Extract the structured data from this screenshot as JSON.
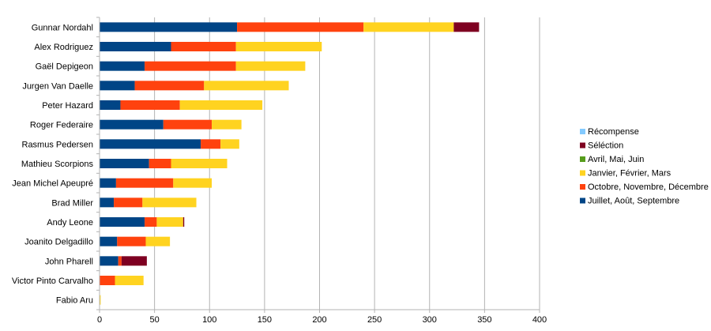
{
  "chart_data": {
    "type": "bar",
    "orientation": "horizontal",
    "stacked": true,
    "categories": [
      "Gunnar Nordahl",
      "Alex Rodriguez",
      "Gaël Depigeon",
      "Jurgen Van Daelle",
      "Peter Hazard",
      "Roger Federaire",
      "Rasmus Pedersen",
      "Mathieu Scorpions",
      "Jean Michel Apeupré",
      "Brad Miller",
      "Andy Leone",
      "Joanito Delgadillo",
      "John Pharell",
      "Victor Pinto Carvalho",
      "Fabio Aru"
    ],
    "series": [
      {
        "name": "Juillet, Août, Septembre",
        "color": "#004586",
        "values": [
          125,
          65,
          41,
          32,
          19,
          58,
          92,
          45,
          15,
          13,
          41,
          16,
          17,
          0,
          0
        ]
      },
      {
        "name": "Octobre, Novembre, Décembre",
        "color": "#ff420e",
        "values": [
          115,
          59,
          83,
          63,
          54,
          44,
          18,
          20,
          52,
          26,
          11,
          26,
          3,
          14,
          0
        ]
      },
      {
        "name": "Janvier, Février, Mars",
        "color": "#ffd320",
        "values": [
          82,
          78,
          63,
          77,
          75,
          27,
          17,
          51,
          35,
          49,
          24,
          22,
          0,
          26,
          1
        ]
      },
      {
        "name": "Avril, Mai, Juin",
        "color": "#579d1c",
        "values": [
          0,
          0,
          0,
          0,
          0,
          0,
          0,
          0,
          0,
          0,
          0,
          0,
          0,
          0,
          0
        ]
      },
      {
        "name": "Séléction",
        "color": "#7e0021",
        "values": [
          23,
          0,
          0,
          0,
          0,
          0,
          0,
          0,
          0,
          0,
          1,
          0,
          23,
          0,
          0
        ]
      },
      {
        "name": "Récompense",
        "color": "#83caff",
        "values": [
          0,
          0,
          0,
          0,
          0,
          0,
          0,
          0,
          0,
          0,
          0,
          0,
          0,
          0,
          0
        ]
      }
    ],
    "legend_order": [
      5,
      4,
      3,
      2,
      1,
      0
    ],
    "xlim": [
      0,
      400
    ],
    "xticks": [
      0,
      50,
      100,
      150,
      200,
      250,
      300,
      350,
      400
    ],
    "grid": true,
    "legend_position": "right"
  }
}
